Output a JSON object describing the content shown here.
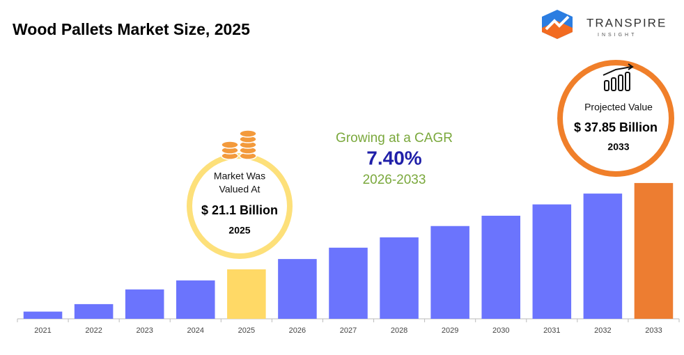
{
  "chart_data": {
    "type": "bar",
    "title": "Wood Pallets Market Size, 2025",
    "categories": [
      "2021",
      "2022",
      "2023",
      "2024",
      "2025",
      "2026",
      "2027",
      "2028",
      "2029",
      "2030",
      "2031",
      "2032",
      "2033"
    ],
    "values": [
      12.9,
      14.35,
      17.2,
      18.95,
      21.1,
      23.1,
      25.3,
      27.3,
      29.5,
      31.5,
      33.7,
      35.8,
      37.85
    ],
    "value_labels": [
      null,
      null,
      null,
      null,
      "$ 21.1 Billion",
      null,
      null,
      null,
      null,
      null,
      null,
      null,
      "$ 37.85 Billion"
    ],
    "colors": [
      "#6b74fd",
      "#6b74fd",
      "#6b74fd",
      "#6b74fd",
      "#ffd966",
      "#6b74fd",
      "#6b74fd",
      "#6b74fd",
      "#6b74fd",
      "#6b74fd",
      "#6b74fd",
      "#6b74fd",
      "#ed7d31"
    ],
    "ylim": [
      11.5,
      40
    ],
    "callouts": [
      {
        "text": [
          "Market Was",
          "Valued At"
        ],
        "year": "2025"
      },
      {
        "text": [
          "Projected Value"
        ],
        "year": "2033"
      }
    ],
    "cagr": {
      "text": "Growing at a CAGR",
      "value": "7.40%",
      "period": "2026-2033"
    }
  },
  "brand": {
    "name": "TRANSPIRE",
    "tagline": "INSIGHT"
  }
}
